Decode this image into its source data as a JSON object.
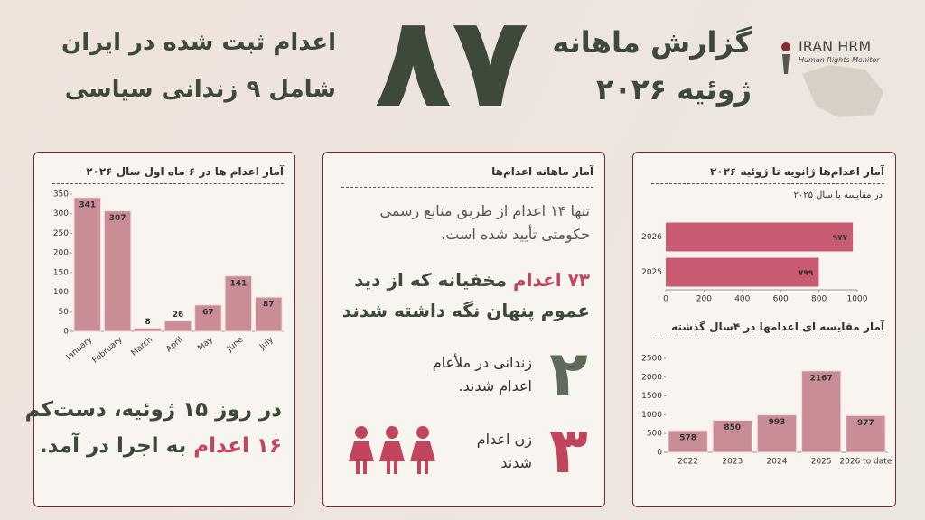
{
  "header": {
    "logo": "IRAN HRM",
    "logo_sub": "Human Rights Monitor",
    "title": "گزارش ماهانه",
    "subtitle": "ژوئیه ۲۰۲۶",
    "big_number": "۸۷",
    "headline_1": "اعدام ثبت شده در ایران",
    "headline_2": "شامل ۹ زندانی سیاسی"
  },
  "left_note": {
    "line_1": "در روز ۱۵ ژوئیه، دست‌کم",
    "highlight": "۱۶ اعدام",
    "line_2": "به اجرا در آمد."
  },
  "middle": {
    "title": "آمار ماهانه اعدام‌ها",
    "text": "تنها ۱۴ اعدام از طریق منابع رسمی حکومتی تأیید شده است.",
    "highlight": "۷۳ اعدام",
    "highlight_text": "مخفیانه که از دید عموم پنهان نگه داشته شدند",
    "stat_1_number": "۲",
    "stat_1_text": "زندانی در ملأعام اعدام شدند.",
    "stat_2_number": "۳",
    "stat_2_text": "زن اعدام شدند"
  },
  "chart_data": [
    {
      "type": "bar",
      "title": "آمار اعدام ها در ۶ ماه اول سال ۲۰۲۶",
      "categories": [
        "January",
        "February",
        "March",
        "April",
        "May",
        "June",
        "July"
      ],
      "values": [
        341,
        307,
        8,
        26,
        67,
        141,
        87
      ],
      "color": "#c98d95",
      "ylim": [
        0,
        350
      ],
      "yticks": [
        0,
        50,
        100,
        150,
        200,
        250,
        300,
        350
      ]
    },
    {
      "type": "barh",
      "title": "آمار اعدام‌ها ژانویه تا ژوئیه ۲۰۲۶",
      "subtitle": "در مقایسه با سال ۲۰۲۵",
      "categories": [
        "2026",
        "2025"
      ],
      "values": [
        977,
        799
      ],
      "value_labels": [
        "۹۷۷",
        "۷۹۹"
      ],
      "color": "#c85a72",
      "xlim": [
        0,
        1000
      ],
      "xticks": [
        0,
        200,
        400,
        600,
        800,
        1000
      ]
    },
    {
      "type": "bar",
      "title": "آمار مقایسه ای اعدامها در ۴سال گذشته",
      "categories": [
        "2022",
        "2023",
        "2024",
        "2025",
        "2026 to date"
      ],
      "values": [
        578,
        850,
        993,
        2167,
        977
      ],
      "color": "#c98d95",
      "ylim": [
        0,
        2500
      ],
      "yticks": [
        0,
        500,
        1000,
        1500,
        2000,
        2500
      ]
    }
  ]
}
